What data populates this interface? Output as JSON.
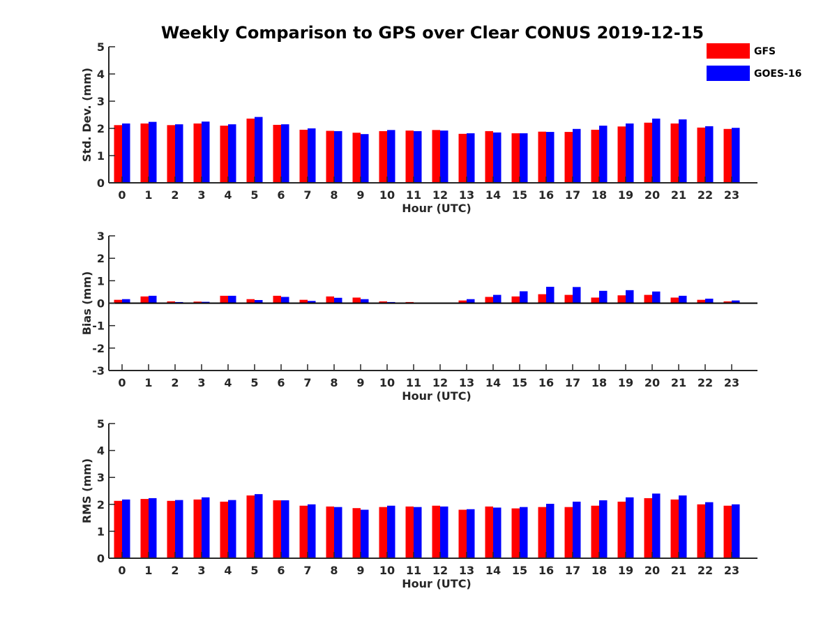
{
  "chart_data": {
    "title": "Weekly Comparison to GPS over Clear CONUS 2019-12-15",
    "legend": {
      "placement": "top-right",
      "entries": [
        {
          "name": "GFS",
          "color": "#ff0000"
        },
        {
          "name": "GOES-16",
          "color": "#0000ff"
        }
      ]
    },
    "panels": [
      {
        "type": "bar",
        "ylabel": "Std. Dev. (mm)",
        "xlabel": "Hour (UTC)",
        "ylim": [
          0,
          5
        ],
        "yticks": [
          "0",
          "1",
          "2",
          "3",
          "4",
          "5"
        ],
        "categories": [
          "0",
          "1",
          "2",
          "3",
          "4",
          "5",
          "6",
          "7",
          "8",
          "9",
          "10",
          "11",
          "12",
          "13",
          "14",
          "15",
          "16",
          "17",
          "18",
          "19",
          "20",
          "21",
          "22",
          "23"
        ],
        "series": [
          {
            "name": "GFS",
            "color": "#ff0000",
            "values": [
              2.12,
              2.18,
              2.12,
              2.18,
              2.1,
              2.36,
              2.13,
              1.95,
              1.91,
              1.84,
              1.9,
              1.92,
              1.94,
              1.8,
              1.9,
              1.82,
              1.88,
              1.87,
              1.95,
              2.07,
              2.21,
              2.18,
              2.03,
              1.98
            ]
          },
          {
            "name": "GOES-16",
            "color": "#0000ff",
            "values": [
              2.18,
              2.24,
              2.15,
              2.25,
              2.15,
              2.42,
              2.15,
              2.0,
              1.9,
              1.79,
              1.94,
              1.9,
              1.92,
              1.82,
              1.85,
              1.82,
              1.87,
              1.98,
              2.1,
              2.18,
              2.36,
              2.33,
              2.08,
              2.02
            ]
          }
        ]
      },
      {
        "type": "bar",
        "ylabel": "Bias (mm)",
        "xlabel": "Hour (UTC)",
        "ylim": [
          -3,
          3
        ],
        "yticks": [
          "-3",
          "-2",
          "-1",
          "0",
          "1",
          "2",
          "3"
        ],
        "categories": [
          "0",
          "1",
          "2",
          "3",
          "4",
          "5",
          "6",
          "7",
          "8",
          "9",
          "10",
          "11",
          "12",
          "13",
          "14",
          "15",
          "16",
          "17",
          "18",
          "19",
          "20",
          "21",
          "22",
          "23"
        ],
        "series": [
          {
            "name": "GFS",
            "color": "#ff0000",
            "values": [
              0.15,
              0.3,
              0.08,
              0.07,
              0.33,
              0.18,
              0.33,
              0.15,
              0.3,
              0.25,
              0.08,
              0.05,
              -0.03,
              0.12,
              0.28,
              0.3,
              0.4,
              0.37,
              0.25,
              0.35,
              0.37,
              0.25,
              0.15,
              0.08
            ]
          },
          {
            "name": "GOES-16",
            "color": "#0000ff",
            "values": [
              0.18,
              0.33,
              0.05,
              0.06,
              0.33,
              0.14,
              0.28,
              0.1,
              0.24,
              0.18,
              0.05,
              0.02,
              -0.02,
              0.18,
              0.37,
              0.53,
              0.73,
              0.72,
              0.55,
              0.58,
              0.52,
              0.33,
              0.2,
              0.12
            ]
          }
        ]
      },
      {
        "type": "bar",
        "ylabel": "RMS (mm)",
        "xlabel": "Hour (UTC)",
        "ylim": [
          0,
          5
        ],
        "yticks": [
          "0",
          "1",
          "2",
          "3",
          "4",
          "5"
        ],
        "categories": [
          "0",
          "1",
          "2",
          "3",
          "4",
          "5",
          "6",
          "7",
          "8",
          "9",
          "10",
          "11",
          "12",
          "13",
          "14",
          "15",
          "16",
          "17",
          "18",
          "19",
          "20",
          "21",
          "22",
          "23"
        ],
        "series": [
          {
            "name": "GFS",
            "color": "#ff0000",
            "values": [
              2.13,
              2.2,
              2.13,
              2.18,
              2.1,
              2.33,
              2.15,
              1.95,
              1.92,
              1.86,
              1.9,
              1.92,
              1.95,
              1.8,
              1.92,
              1.85,
              1.9,
              1.9,
              1.95,
              2.1,
              2.23,
              2.18,
              2.0,
              1.95
            ]
          },
          {
            "name": "GOES-16",
            "color": "#0000ff",
            "values": [
              2.18,
              2.23,
              2.16,
              2.26,
              2.16,
              2.38,
              2.15,
              2.0,
              1.9,
              1.8,
              1.95,
              1.9,
              1.92,
              1.82,
              1.88,
              1.9,
              2.02,
              2.1,
              2.15,
              2.26,
              2.4,
              2.33,
              2.08,
              2.0
            ]
          }
        ]
      }
    ]
  }
}
